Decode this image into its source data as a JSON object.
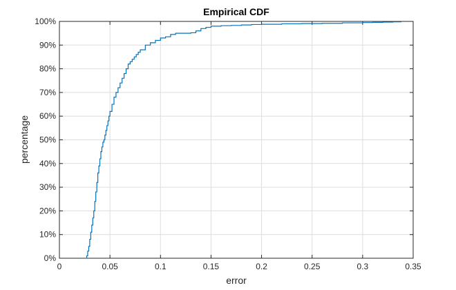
{
  "chart_data": {
    "type": "line",
    "title": "Empirical CDF",
    "xlabel": "error",
    "ylabel": "percentage",
    "xlim": [
      0,
      0.35
    ],
    "ylim": [
      0,
      100
    ],
    "grid": true,
    "xticks": [
      0,
      0.05,
      0.1,
      0.15,
      0.2,
      0.25,
      0.3,
      0.35
    ],
    "xtick_labels": [
      "0",
      "0.05",
      "0.1",
      "0.15",
      "0.2",
      "0.25",
      "0.3",
      "0.35"
    ],
    "yticks": [
      0,
      10,
      20,
      30,
      40,
      50,
      60,
      70,
      80,
      90,
      100
    ],
    "ytick_labels": [
      "0%",
      "10%",
      "20%",
      "30%",
      "40%",
      "50%",
      "60%",
      "70%",
      "80%",
      "90%",
      "100%"
    ],
    "line_color": "#0072bd",
    "series": [
      {
        "x": [
          0.026,
          0.027,
          0.028,
          0.029,
          0.03,
          0.031,
          0.032,
          0.033,
          0.034,
          0.035,
          0.036,
          0.037,
          0.038,
          0.039,
          0.04,
          0.041,
          0.042,
          0.043,
          0.044,
          0.045,
          0.046,
          0.047,
          0.048,
          0.049,
          0.05,
          0.052,
          0.054,
          0.056,
          0.058,
          0.06,
          0.062,
          0.064,
          0.066,
          0.068,
          0.07,
          0.072,
          0.074,
          0.076,
          0.078,
          0.08,
          0.085,
          0.09,
          0.095,
          0.1,
          0.105,
          0.11,
          0.115,
          0.12,
          0.125,
          0.13,
          0.135,
          0.14,
          0.145,
          0.15,
          0.16,
          0.17,
          0.18,
          0.19,
          0.2,
          0.22,
          0.24,
          0.26,
          0.28,
          0.3,
          0.31,
          0.32,
          0.33,
          0.338
        ],
        "y": [
          0,
          1,
          3,
          5,
          8,
          11,
          14,
          17,
          20,
          24,
          28,
          32,
          36,
          39,
          42,
          45,
          47,
          49,
          50,
          52,
          54,
          56,
          58,
          60,
          62,
          65,
          68,
          70,
          72,
          74,
          76,
          78,
          80,
          82,
          83,
          84,
          85,
          86,
          87,
          88,
          90,
          91,
          92,
          93,
          93.5,
          94.5,
          95,
          95,
          95,
          95.2,
          96,
          97,
          97.5,
          98,
          98.2,
          98.3,
          98.5,
          98.7,
          98.8,
          99,
          99.1,
          99.2,
          99.4,
          99.5,
          99.6,
          99.7,
          99.8,
          100
        ]
      }
    ]
  }
}
